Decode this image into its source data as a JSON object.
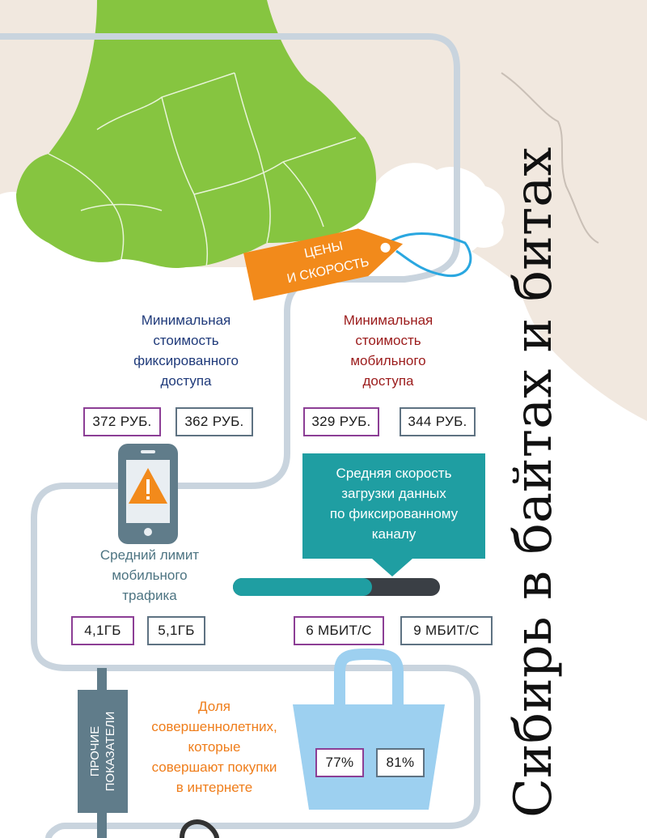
{
  "title": "Сибирь в байтах и битах",
  "price_tag": {
    "line1": "ЦЕНЫ",
    "line2": "И СКОРОСТЬ"
  },
  "fixed_access": {
    "heading": [
      "Минимальная",
      "стоимость",
      "фиксированного",
      "доступа"
    ],
    "values": [
      "372 РУБ.",
      "362 РУБ."
    ]
  },
  "mobile_access": {
    "heading": [
      "Минимальная",
      "стоимость",
      "мобильного",
      "доступа"
    ],
    "values": [
      "329 РУБ.",
      "344 РУБ."
    ]
  },
  "traffic_limit": {
    "heading": [
      "Средний лимит",
      "мобильного",
      "трафика"
    ],
    "values": [
      "4,1ГБ",
      "5,1ГБ"
    ]
  },
  "download_speed": {
    "heading": [
      "Средняя скорость",
      "загрузки данных",
      "по фиксированному",
      "каналу"
    ],
    "values": [
      "6 МБИТ/С",
      "9 МБИТ/С"
    ],
    "progress_fraction": 0.67
  },
  "side_label": [
    "ПРОЧИЕ",
    "ПОКАЗАТЕЛИ"
  ],
  "online_shopping": {
    "heading": [
      "Доля",
      "совершеннолетних,",
      "которые",
      "совершают покупки",
      "в интернете"
    ],
    "values": [
      "77%",
      "81%"
    ]
  },
  "colors": {
    "map_green": "#86c540",
    "tag_orange": "#f28a1b",
    "teal": "#1f9ea2",
    "navy": "#1f3a7a",
    "dark_red": "#9b1b1b",
    "orange_text": "#ef7d1a",
    "purple_border": "#8c3e95",
    "slate_border": "#5e7282",
    "bag_blue": "#9dd0f0"
  },
  "icons": [
    "phone-warning-icon",
    "shopping-bag-icon",
    "price-tag-icon"
  ]
}
